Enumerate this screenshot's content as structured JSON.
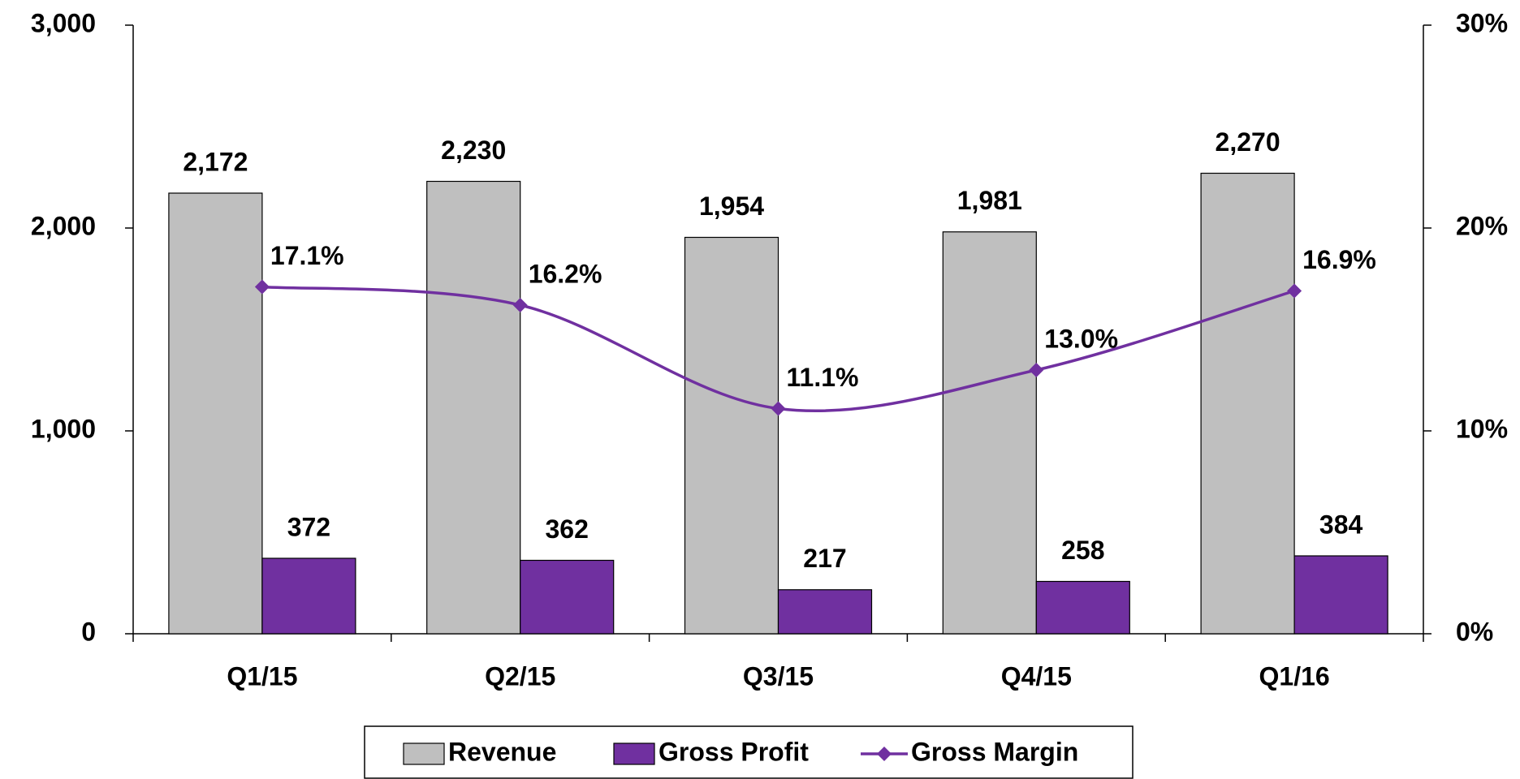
{
  "chart_data": {
    "type": "bar",
    "categories": [
      "Q1/15",
      "Q2/15",
      "Q3/15",
      "Q4/15",
      "Q1/16"
    ],
    "series": [
      {
        "name": "Revenue",
        "type": "bar",
        "color": "#bfbfbf",
        "values": [
          2172,
          2230,
          1954,
          1981,
          2270
        ],
        "value_labels": [
          "2,172",
          "2,230",
          "1,954",
          "1,981",
          "2,270"
        ]
      },
      {
        "name": "Gross Profit",
        "type": "bar",
        "color": "#7030a0",
        "values": [
          372,
          362,
          217,
          258,
          384
        ]
      },
      {
        "name": "Gross Margin",
        "type": "line",
        "axis": "y2",
        "color": "#7030a0",
        "values": [
          17.1,
          16.2,
          11.1,
          13.0,
          16.9
        ],
        "value_labels": [
          "17.1%",
          "16.2%",
          "11.1%",
          "13.0%",
          "16.9%"
        ]
      }
    ],
    "ylim": [
      0,
      3000
    ],
    "yticks": [
      0,
      {
        "value": 1000,
        "label": "1,000"
      },
      {
        "value": 2000,
        "label": "2,000"
      },
      {
        "value": 3000,
        "label": "3,000"
      }
    ],
    "y2lim": [
      0,
      30
    ],
    "y2ticks": [
      {
        "value": 0,
        "label": "0%"
      },
      {
        "value": 10,
        "label": "10%"
      },
      {
        "value": 20,
        "label": "20%"
      },
      {
        "value": 30,
        "label": "30%"
      }
    ],
    "grid": false,
    "legend": "bottom"
  }
}
